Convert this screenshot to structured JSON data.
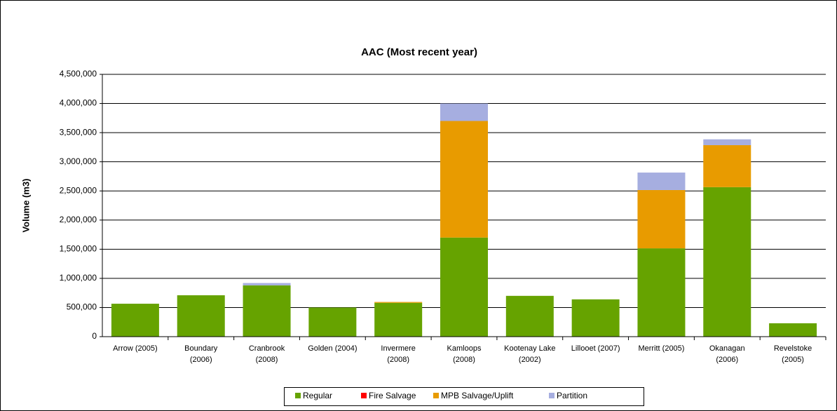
{
  "chart_data": {
    "type": "stacked_bar",
    "title": "AAC (Most recent year)",
    "y_label": "Volume (m3)",
    "categories": [
      "Arrow (2005)",
      "Boundary\n(2006)",
      "Cranbrook\n(2008)",
      "Golden (2004)",
      "Invermere\n(2008)",
      "Kamloops\n(2008)",
      "Kootenay Lake\n(2002)",
      "Lillooet (2007)",
      "Merritt (2005)",
      "Okanagan\n(2006)",
      "Revelstoke\n(2005)"
    ],
    "series": [
      {
        "name": "Regular",
        "color": "#66a300",
        "values": [
          565000,
          710000,
          880000,
          500000,
          580000,
          1700000,
          700000,
          640000,
          1515000,
          2565000,
          230000
        ]
      },
      {
        "name": "Fire Salvage",
        "color": "#ff0000",
        "values": [
          0,
          0,
          0,
          0,
          0,
          0,
          0,
          0,
          0,
          0,
          0
        ]
      },
      {
        "name": "MPB Salvage/Uplift",
        "color": "#e89b00",
        "values": [
          0,
          0,
          0,
          0,
          15000,
          2000000,
          0,
          0,
          1000000,
          720000,
          0
        ]
      },
      {
        "name": "Partition",
        "color": "#a6aee0",
        "values": [
          0,
          0,
          40000,
          0,
          0,
          300000,
          0,
          0,
          300000,
          100000,
          0
        ]
      }
    ],
    "ylim": [
      0,
      4500000
    ],
    "yticks": [
      0,
      {
        "value": 500000,
        "label": "500,000"
      },
      {
        "value": 1000000,
        "label": "1,000,000"
      },
      {
        "value": 1500000,
        "label": "1,500,000"
      },
      {
        "value": 2000000,
        "label": "2,000,000"
      },
      {
        "value": 2500000,
        "label": "2,500,000"
      },
      {
        "value": 3000000,
        "label": "3,000,000"
      },
      {
        "value": 3500000,
        "label": "3,500,000"
      },
      {
        "value": 4000000,
        "label": "4,000,000"
      },
      {
        "value": 4500000,
        "label": "4,500,000"
      }
    ],
    "grid": true,
    "legend": "bottom"
  }
}
